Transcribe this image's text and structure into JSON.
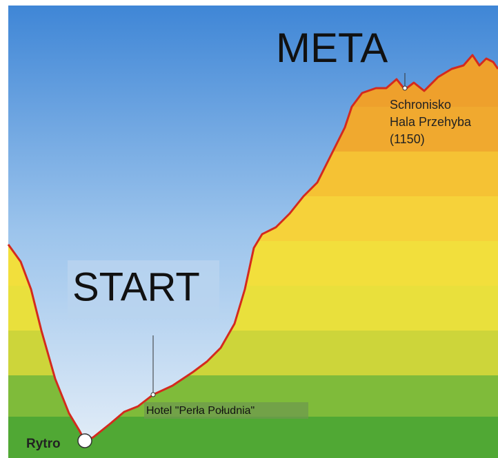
{
  "finish": {
    "title": "META",
    "place": [
      "Schronisko",
      "Hala Przehyba",
      "(1150)"
    ]
  },
  "start": {
    "title": "START",
    "place": "Hotel \"Perła Południa\""
  },
  "origin": "Rytro"
}
